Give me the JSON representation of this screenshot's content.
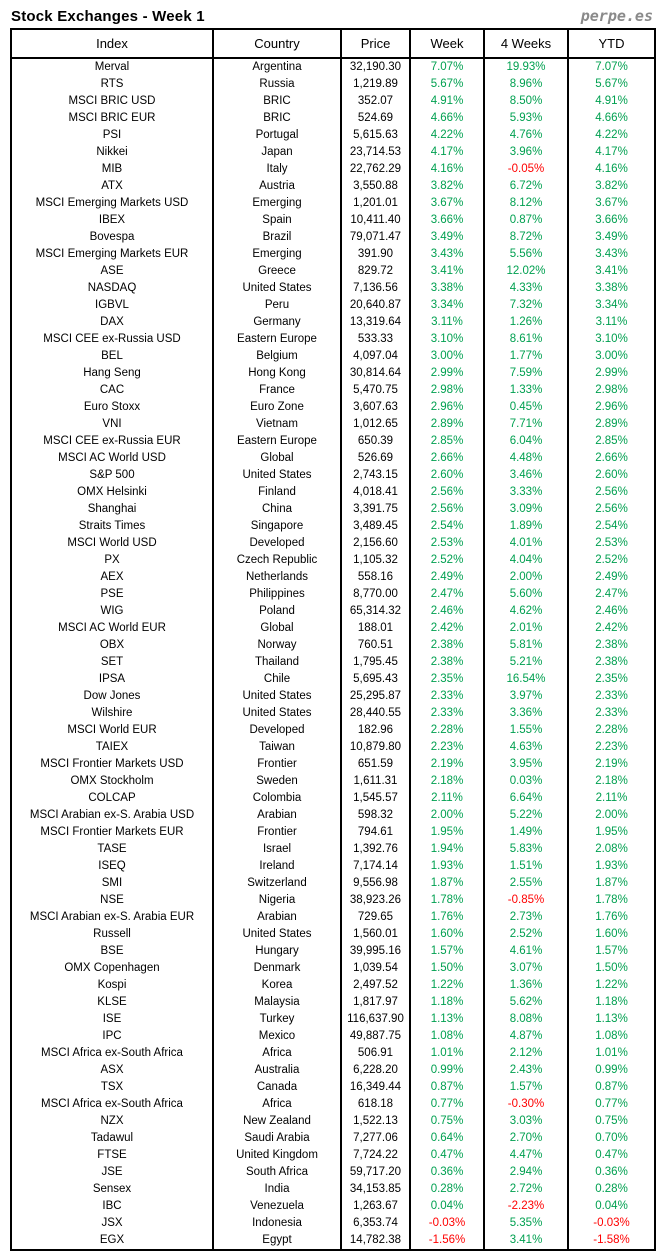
{
  "header": {
    "title": "Stock Exchanges - Week 1",
    "logo": "perpe.es"
  },
  "colors": {
    "positive": "#00A050",
    "negative": "#FF0000",
    "border": "#000000",
    "logo_gray": "#8a8a8a"
  },
  "table": {
    "columns": [
      "Index",
      "Country",
      "Price",
      "Week",
      "4 Weeks",
      "YTD"
    ],
    "column_keys": [
      "index",
      "country",
      "price",
      "week",
      "4weeks",
      "ytd"
    ],
    "percent_columns_start": 3,
    "rows": [
      [
        "Merval",
        "Argentina",
        "32,190.30",
        "7.07%",
        "19.93%",
        "7.07%"
      ],
      [
        "RTS",
        "Russia",
        "1,219.89",
        "5.67%",
        "8.96%",
        "5.67%"
      ],
      [
        "MSCI BRIC USD",
        "BRIC",
        "352.07",
        "4.91%",
        "8.50%",
        "4.91%"
      ],
      [
        "MSCI BRIC EUR",
        "BRIC",
        "524.69",
        "4.66%",
        "5.93%",
        "4.66%"
      ],
      [
        "PSI",
        "Portugal",
        "5,615.63",
        "4.22%",
        "4.76%",
        "4.22%"
      ],
      [
        "Nikkei",
        "Japan",
        "23,714.53",
        "4.17%",
        "3.96%",
        "4.17%"
      ],
      [
        "MIB",
        "Italy",
        "22,762.29",
        "4.16%",
        "-0.05%",
        "4.16%"
      ],
      [
        "ATX",
        "Austria",
        "3,550.88",
        "3.82%",
        "6.72%",
        "3.82%"
      ],
      [
        "MSCI Emerging Markets USD",
        "Emerging",
        "1,201.01",
        "3.67%",
        "8.12%",
        "3.67%"
      ],
      [
        "IBEX",
        "Spain",
        "10,411.40",
        "3.66%",
        "0.87%",
        "3.66%"
      ],
      [
        "Bovespa",
        "Brazil",
        "79,071.47",
        "3.49%",
        "8.72%",
        "3.49%"
      ],
      [
        "MSCI Emerging Markets EUR",
        "Emerging",
        "391.90",
        "3.43%",
        "5.56%",
        "3.43%"
      ],
      [
        "ASE",
        "Greece",
        "829.72",
        "3.41%",
        "12.02%",
        "3.41%"
      ],
      [
        "NASDAQ",
        "United States",
        "7,136.56",
        "3.38%",
        "4.33%",
        "3.38%"
      ],
      [
        "IGBVL",
        "Peru",
        "20,640.87",
        "3.34%",
        "7.32%",
        "3.34%"
      ],
      [
        "DAX",
        "Germany",
        "13,319.64",
        "3.11%",
        "1.26%",
        "3.11%"
      ],
      [
        "MSCI CEE ex-Russia USD",
        "Eastern Europe",
        "533.33",
        "3.10%",
        "8.61%",
        "3.10%"
      ],
      [
        "BEL",
        "Belgium",
        "4,097.04",
        "3.00%",
        "1.77%",
        "3.00%"
      ],
      [
        "Hang Seng",
        "Hong Kong",
        "30,814.64",
        "2.99%",
        "7.59%",
        "2.99%"
      ],
      [
        "CAC",
        "France",
        "5,470.75",
        "2.98%",
        "1.33%",
        "2.98%"
      ],
      [
        "Euro Stoxx",
        "Euro Zone",
        "3,607.63",
        "2.96%",
        "0.45%",
        "2.96%"
      ],
      [
        "VNI",
        "Vietnam",
        "1,012.65",
        "2.89%",
        "7.71%",
        "2.89%"
      ],
      [
        "MSCI CEE ex-Russia EUR",
        "Eastern Europe",
        "650.39",
        "2.85%",
        "6.04%",
        "2.85%"
      ],
      [
        "MSCI AC World USD",
        "Global",
        "526.69",
        "2.66%",
        "4.48%",
        "2.66%"
      ],
      [
        "S&P 500",
        "United States",
        "2,743.15",
        "2.60%",
        "3.46%",
        "2.60%"
      ],
      [
        "OMX Helsinki",
        "Finland",
        "4,018.41",
        "2.56%",
        "3.33%",
        "2.56%"
      ],
      [
        "Shanghai",
        "China",
        "3,391.75",
        "2.56%",
        "3.09%",
        "2.56%"
      ],
      [
        "Straits Times",
        "Singapore",
        "3,489.45",
        "2.54%",
        "1.89%",
        "2.54%"
      ],
      [
        "MSCI World USD",
        "Developed",
        "2,156.60",
        "2.53%",
        "4.01%",
        "2.53%"
      ],
      [
        "PX",
        "Czech Republic",
        "1,105.32",
        "2.52%",
        "4.04%",
        "2.52%"
      ],
      [
        "AEX",
        "Netherlands",
        "558.16",
        "2.49%",
        "2.00%",
        "2.49%"
      ],
      [
        "PSE",
        "Philippines",
        "8,770.00",
        "2.47%",
        "5.60%",
        "2.47%"
      ],
      [
        "WIG",
        "Poland",
        "65,314.32",
        "2.46%",
        "4.62%",
        "2.46%"
      ],
      [
        "MSCI AC World EUR",
        "Global",
        "188.01",
        "2.42%",
        "2.01%",
        "2.42%"
      ],
      [
        "OBX",
        "Norway",
        "760.51",
        "2.38%",
        "5.81%",
        "2.38%"
      ],
      [
        "SET",
        "Thailand",
        "1,795.45",
        "2.38%",
        "5.21%",
        "2.38%"
      ],
      [
        "IPSA",
        "Chile",
        "5,695.43",
        "2.35%",
        "16.54%",
        "2.35%"
      ],
      [
        "Dow Jones",
        "United States",
        "25,295.87",
        "2.33%",
        "3.97%",
        "2.33%"
      ],
      [
        "Wilshire",
        "United States",
        "28,440.55",
        "2.33%",
        "3.36%",
        "2.33%"
      ],
      [
        "MSCI World EUR",
        "Developed",
        "182.96",
        "2.28%",
        "1.55%",
        "2.28%"
      ],
      [
        "TAIEX",
        "Taiwan",
        "10,879.80",
        "2.23%",
        "4.63%",
        "2.23%"
      ],
      [
        "MSCI Frontier Markets USD",
        "Frontier",
        "651.59",
        "2.19%",
        "3.95%",
        "2.19%"
      ],
      [
        "OMX Stockholm",
        "Sweden",
        "1,611.31",
        "2.18%",
        "0.03%",
        "2.18%"
      ],
      [
        "COLCAP",
        "Colombia",
        "1,545.57",
        "2.11%",
        "6.64%",
        "2.11%"
      ],
      [
        "MSCI Arabian ex-S. Arabia USD",
        "Arabian",
        "598.32",
        "2.00%",
        "5.22%",
        "2.00%"
      ],
      [
        "MSCI Frontier Markets EUR",
        "Frontier",
        "794.61",
        "1.95%",
        "1.49%",
        "1.95%"
      ],
      [
        "TASE",
        "Israel",
        "1,392.76",
        "1.94%",
        "5.83%",
        "2.08%"
      ],
      [
        "ISEQ",
        "Ireland",
        "7,174.14",
        "1.93%",
        "1.51%",
        "1.93%"
      ],
      [
        "SMI",
        "Switzerland",
        "9,556.98",
        "1.87%",
        "2.55%",
        "1.87%"
      ],
      [
        "NSE",
        "Nigeria",
        "38,923.26",
        "1.78%",
        "-0.85%",
        "1.78%"
      ],
      [
        "MSCI Arabian ex-S. Arabia EUR",
        "Arabian",
        "729.65",
        "1.76%",
        "2.73%",
        "1.76%"
      ],
      [
        "Russell",
        "United States",
        "1,560.01",
        "1.60%",
        "2.52%",
        "1.60%"
      ],
      [
        "BSE",
        "Hungary",
        "39,995.16",
        "1.57%",
        "4.61%",
        "1.57%"
      ],
      [
        "OMX Copenhagen",
        "Denmark",
        "1,039.54",
        "1.50%",
        "3.07%",
        "1.50%"
      ],
      [
        "Kospi",
        "Korea",
        "2,497.52",
        "1.22%",
        "1.36%",
        "1.22%"
      ],
      [
        "KLSE",
        "Malaysia",
        "1,817.97",
        "1.18%",
        "5.62%",
        "1.18%"
      ],
      [
        "ISE",
        "Turkey",
        "116,637.90",
        "1.13%",
        "8.08%",
        "1.13%"
      ],
      [
        "IPC",
        "Mexico",
        "49,887.75",
        "1.08%",
        "4.87%",
        "1.08%"
      ],
      [
        "MSCI Africa ex-South Africa",
        "Africa",
        "506.91",
        "1.01%",
        "2.12%",
        "1.01%"
      ],
      [
        "ASX",
        "Australia",
        "6,228.20",
        "0.99%",
        "2.43%",
        "0.99%"
      ],
      [
        "TSX",
        "Canada",
        "16,349.44",
        "0.87%",
        "1.57%",
        "0.87%"
      ],
      [
        "MSCI Africa ex-South Africa",
        "Africa",
        "618.18",
        "0.77%",
        "-0.30%",
        "0.77%"
      ],
      [
        "NZX",
        "New Zealand",
        "1,522.13",
        "0.75%",
        "3.03%",
        "0.75%"
      ],
      [
        "Tadawul",
        "Saudi Arabia",
        "7,277.06",
        "0.64%",
        "2.70%",
        "0.70%"
      ],
      [
        "FTSE",
        "United Kingdom",
        "7,724.22",
        "0.47%",
        "4.47%",
        "0.47%"
      ],
      [
        "JSE",
        "South Africa",
        "59,717.20",
        "0.36%",
        "2.94%",
        "0.36%"
      ],
      [
        "Sensex",
        "India",
        "34,153.85",
        "0.28%",
        "2.72%",
        "0.28%"
      ],
      [
        "IBC",
        "Venezuela",
        "1,263.67",
        "0.04%",
        "-2.23%",
        "0.04%"
      ],
      [
        "JSX",
        "Indonesia",
        "6,353.74",
        "-0.03%",
        "5.35%",
        "-0.03%"
      ],
      [
        "EGX",
        "Egypt",
        "14,782.38",
        "-1.56%",
        "3.41%",
        "-1.58%"
      ]
    ]
  }
}
